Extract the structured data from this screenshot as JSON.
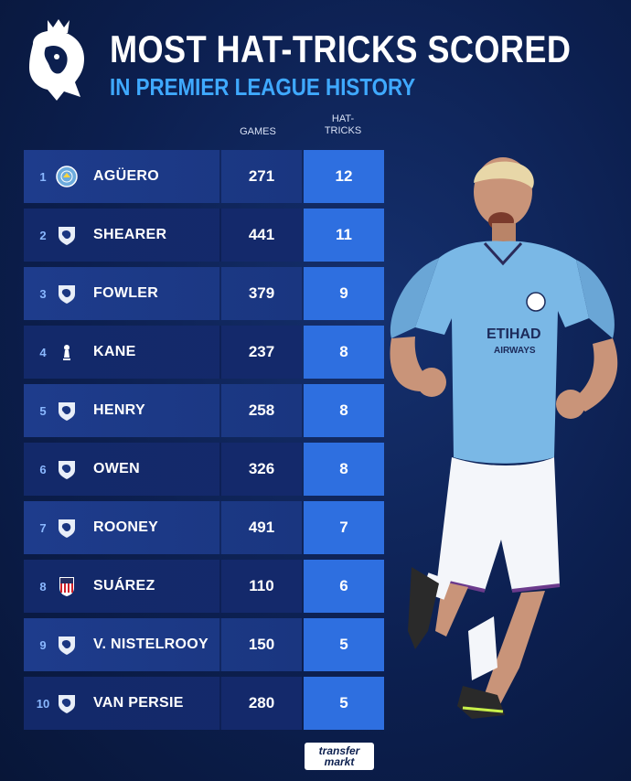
{
  "header": {
    "title": "MOST HAT-TRICKS SCORED",
    "subtitle": "IN PREMIER LEAGUE HISTORY"
  },
  "columns": {
    "games": "GAMES",
    "hat_tricks_line1": "HAT-",
    "hat_tricks_line2": "TRICKS"
  },
  "rows": [
    {
      "rank": "1",
      "name": "AGÜERO",
      "games": "271",
      "hat_tricks": "12",
      "badge": "man-city-badge"
    },
    {
      "rank": "2",
      "name": "SHEARER",
      "games": "441",
      "hat_tricks": "11",
      "badge": "premier-league-badge"
    },
    {
      "rank": "3",
      "name": "FOWLER",
      "games": "379",
      "hat_tricks": "9",
      "badge": "premier-league-badge"
    },
    {
      "rank": "4",
      "name": "KANE",
      "games": "237",
      "hat_tricks": "8",
      "badge": "tottenham-badge"
    },
    {
      "rank": "5",
      "name": "HENRY",
      "games": "258",
      "hat_tricks": "8",
      "badge": "premier-league-badge"
    },
    {
      "rank": "6",
      "name": "OWEN",
      "games": "326",
      "hat_tricks": "8",
      "badge": "premier-league-badge"
    },
    {
      "rank": "7",
      "name": "ROONEY",
      "games": "491",
      "hat_tricks": "7",
      "badge": "premier-league-badge"
    },
    {
      "rank": "8",
      "name": "SUÁREZ",
      "games": "110",
      "hat_tricks": "6",
      "badge": "atletico-madrid-badge"
    },
    {
      "rank": "9",
      "name": "V. NISTELROOY",
      "games": "150",
      "hat_tricks": "5",
      "badge": "premier-league-badge"
    },
    {
      "rank": "10",
      "name": "VAN PERSIE",
      "games": "280",
      "hat_tricks": "5",
      "badge": "premier-league-badge"
    }
  ],
  "player_shirt": {
    "sponsor_line1": "ETIHAD",
    "sponsor_line2": "AIRWAYS"
  },
  "footer": {
    "brand_line1": "transfer",
    "brand_line2": "markt"
  },
  "colors": {
    "accent": "#3fa9ff",
    "hat_cell": "#2e6fe0",
    "background": "#0c1f4f"
  }
}
